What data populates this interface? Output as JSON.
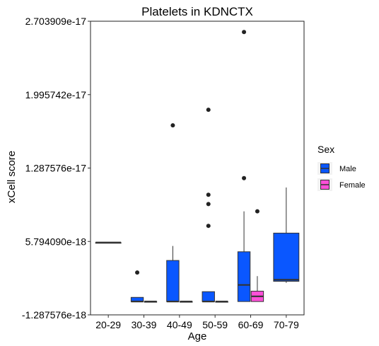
{
  "chart_data": {
    "type": "box",
    "title": "Platelets in KDNCTX",
    "xlabel": "Age",
    "ylabel": "xCell score",
    "categories": [
      "20-29",
      "30-39",
      "40-49",
      "50-59",
      "60-69",
      "70-79"
    ],
    "y_ticks": [
      "-1.287576e-18",
      "5.794090e-18",
      "1.287576e-17",
      "1.995742e-17",
      "2.703909e-17"
    ],
    "y_tick_values": [
      -1.287576e-18,
      5.79409e-18,
      1.287576e-17,
      1.995742e-17,
      2.703909e-17
    ],
    "ylim": [
      -1.287576e-18,
      2.703909e-17
    ],
    "grid": false,
    "legend": {
      "title": "Sex",
      "position": "right",
      "items": [
        {
          "label": "Male",
          "color": "#0a57ff"
        },
        {
          "label": "Female",
          "color": "#ff4fd8"
        }
      ]
    },
    "series": [
      {
        "name": "Male",
        "color": "#0a57ff",
        "boxes": [
          {
            "category": "20-29",
            "solo": true,
            "min": 5.69e-18,
            "q1": 5.69e-18,
            "median": 5.69e-18,
            "q3": 5.69e-18,
            "max": 5.69e-18,
            "outliers": []
          },
          {
            "category": "30-39",
            "min": 0.0,
            "q1": 0.0,
            "median": 0.0,
            "q3": 4e-19,
            "max": 4e-19,
            "outliers": [
              2.8e-18
            ]
          },
          {
            "category": "40-49",
            "min": 0.0,
            "q1": 0.0,
            "median": 0.0,
            "q3": 3.96e-18,
            "max": 5.36e-18,
            "outliers": [
              1.7e-17
            ]
          },
          {
            "category": "50-59",
            "min": 0.0,
            "q1": 0.0,
            "median": 0.0,
            "q3": 9.5e-19,
            "max": 9.5e-19,
            "outliers": [
              7.3e-18,
              9.4e-18,
              1.03e-17,
              1.85e-17
            ]
          },
          {
            "category": "60-69",
            "min": 0.0,
            "q1": 0.0,
            "median": 1.6e-18,
            "q3": 4.8e-18,
            "max": 8.7e-18,
            "outliers": [
              1.19e-17,
              2.6e-17
            ]
          },
          {
            "category": "70-79",
            "solo": true,
            "min": 1.8e-18,
            "q1": 1.95e-18,
            "median": 2.1e-18,
            "q3": 6.6e-18,
            "max": 1.1e-17,
            "outliers": []
          }
        ]
      },
      {
        "name": "Female",
        "color": "#ff4fd8",
        "boxes": [
          {
            "category": "30-39",
            "min": 0.0,
            "q1": 0.0,
            "median": 0.0,
            "q3": 0.0,
            "max": 0.0,
            "outliers": []
          },
          {
            "category": "40-49",
            "min": 0.0,
            "q1": 0.0,
            "median": 0.0,
            "q3": 0.0,
            "max": 0.0,
            "outliers": []
          },
          {
            "category": "50-59",
            "min": 0.0,
            "q1": 0.0,
            "median": 0.0,
            "q3": 0.0,
            "max": 0.0,
            "outliers": []
          },
          {
            "category": "60-69",
            "min": 0.0,
            "q1": 0.0,
            "median": 5e-19,
            "q3": 1e-18,
            "max": 2.45e-18,
            "outliers": [
              8.7e-18
            ]
          }
        ]
      }
    ]
  }
}
